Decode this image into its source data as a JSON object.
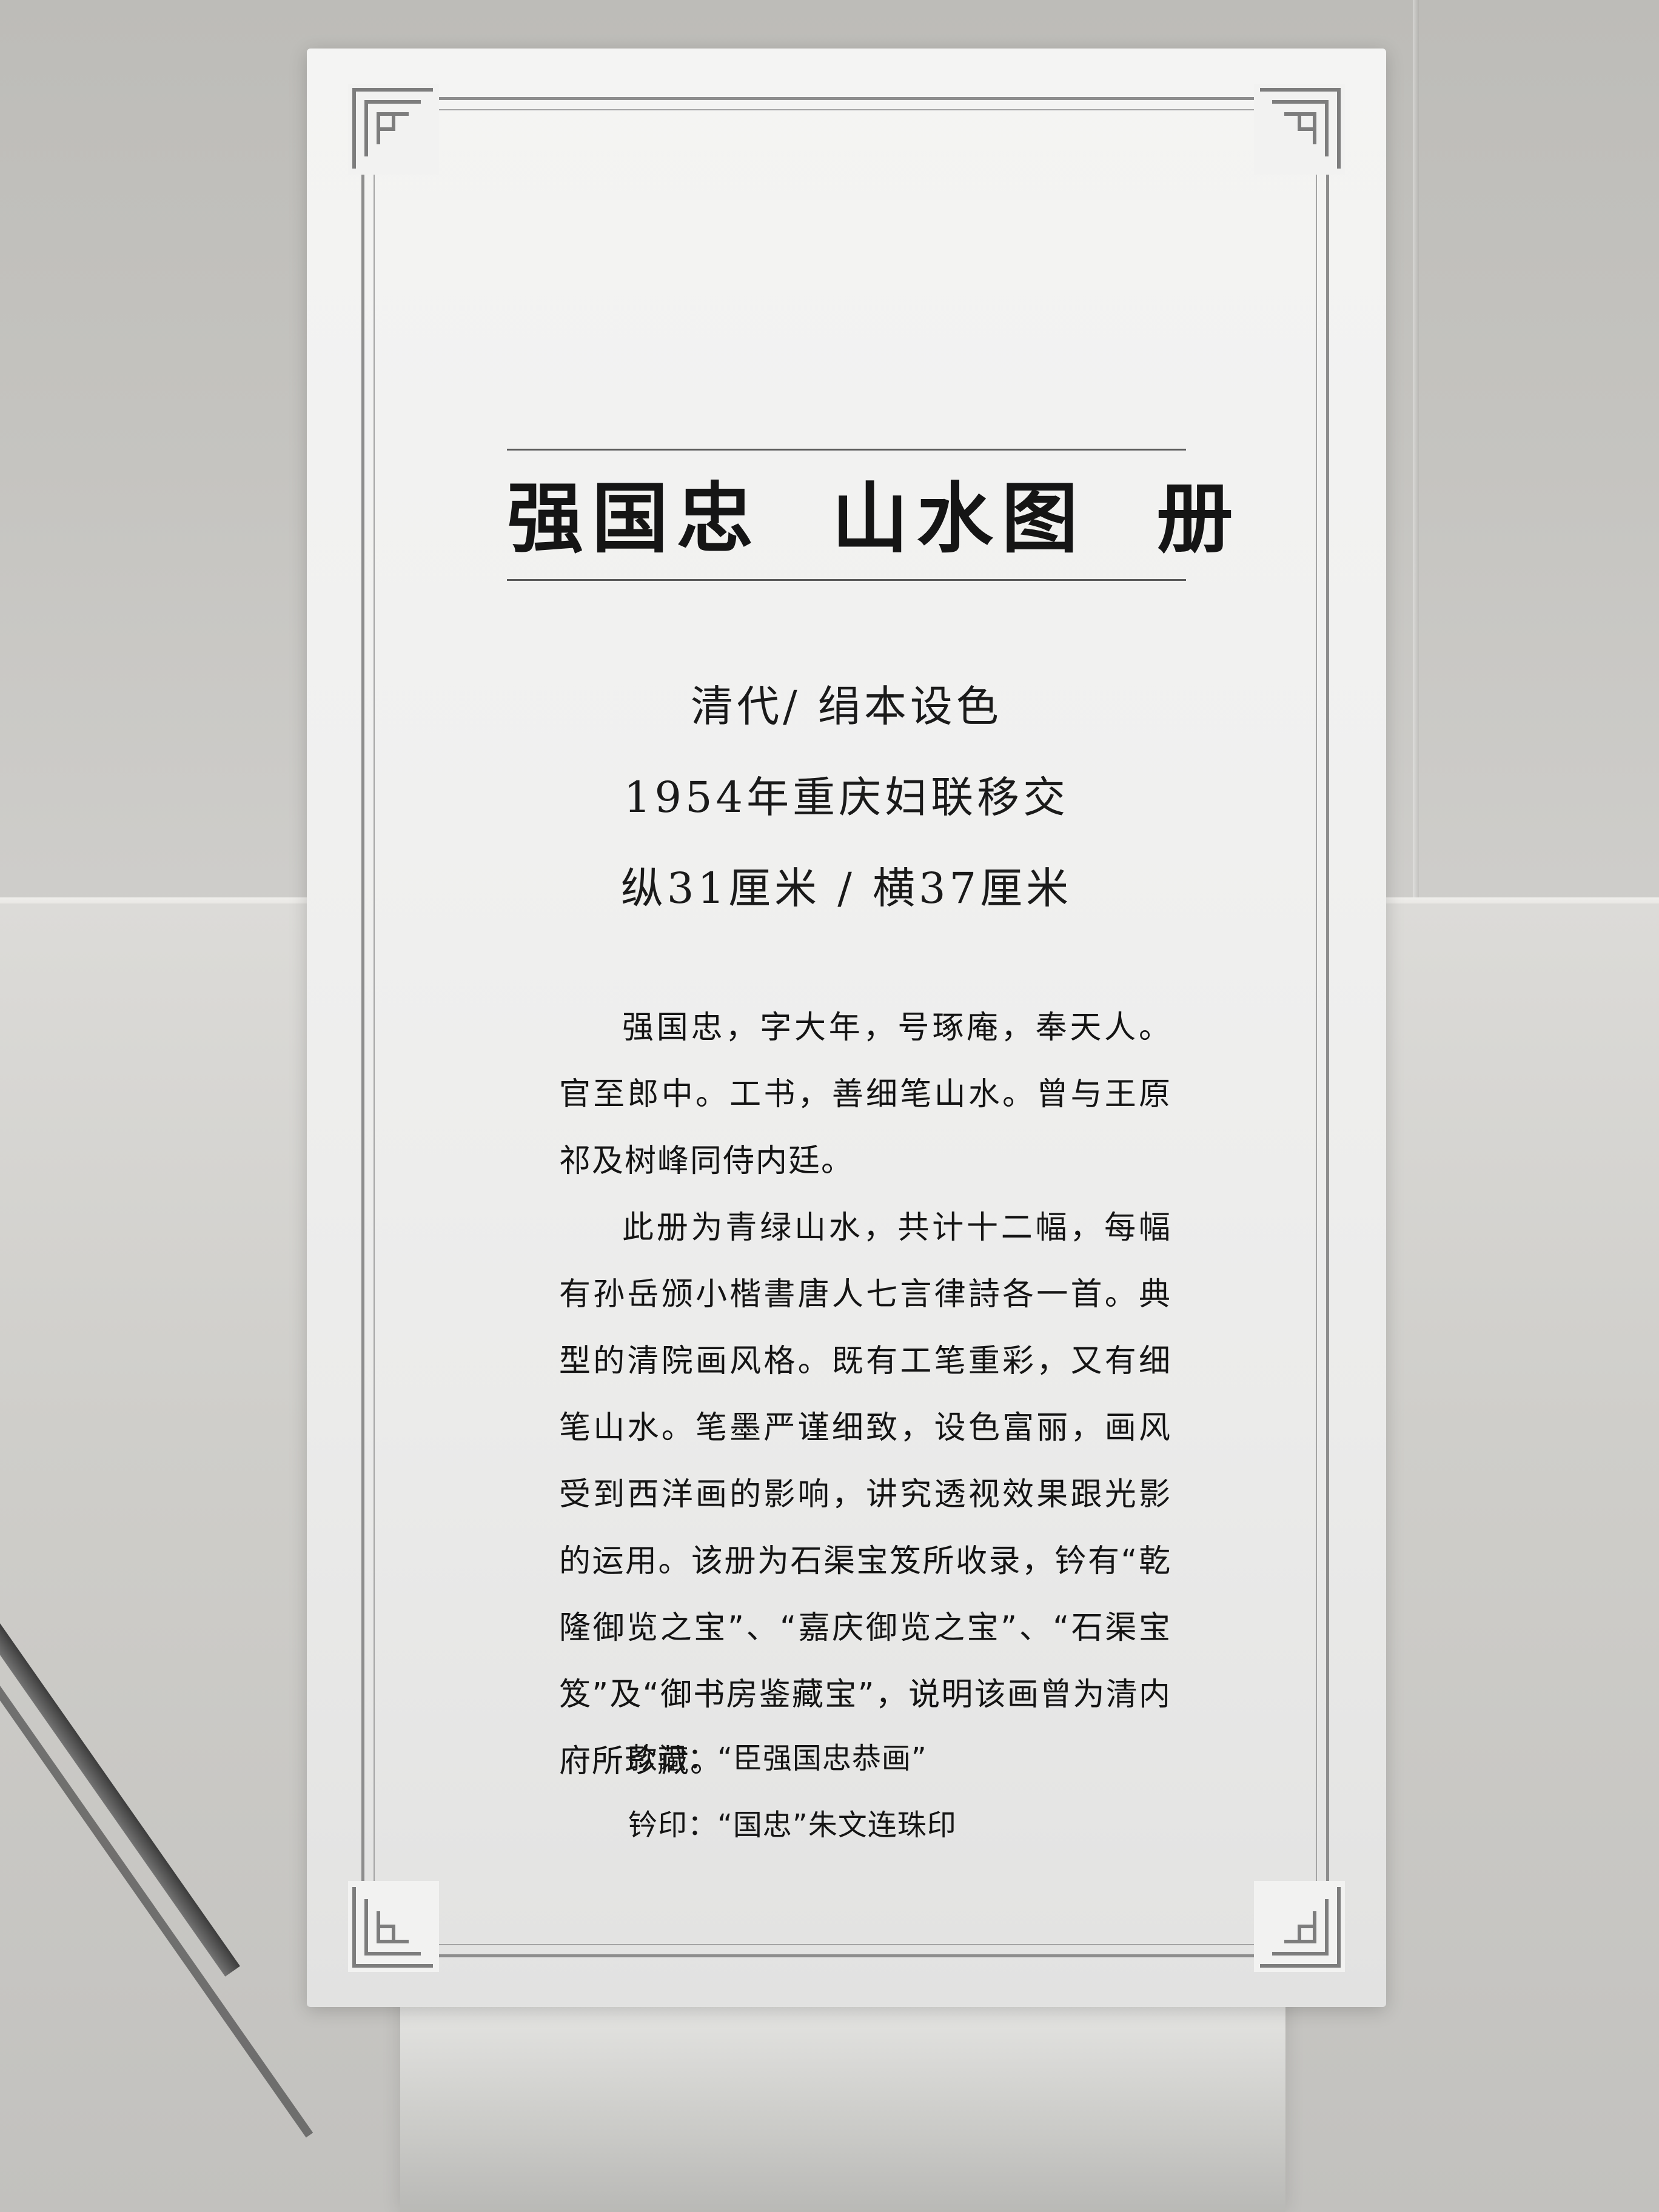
{
  "label": {
    "title": "强国忠  山水图  册",
    "meta": {
      "period_medium": "清代/ 绢本设色",
      "provenance": "1954年重庆妇联移交",
      "dimensions": "纵31厘米 / 横37厘米"
    },
    "paragraphs": [
      "强国忠，字大年，号琢庵，奉天人。官至郎中。工书，善细笔山水。曾与王原祁及树峰同侍内廷。",
      "此册为青绿山水，共计十二幅，每幅有孙岳颁小楷書唐人七言律詩各一首。典型的清院画风格。既有工笔重彩，又有细笔山水。笔墨严谨细致，设色富丽，画风受到西洋画的影响，讲究透视效果跟光影的运用。该册为石渠宝笈所收录，钤有“乾隆御览之宝”、“嘉庆御览之宝”、“石渠宝笈”及“御书房鉴藏宝”，说明该画曾为清内府所珍藏。"
    ],
    "inscription": "款识：“臣强国忠恭画”",
    "seal": "钤印：“国忠”朱文连珠印"
  },
  "colors": {
    "card": "#f0f0ef",
    "frame": "#8d8d8d",
    "text": "#151515",
    "wall": "#c4c3bf"
  }
}
